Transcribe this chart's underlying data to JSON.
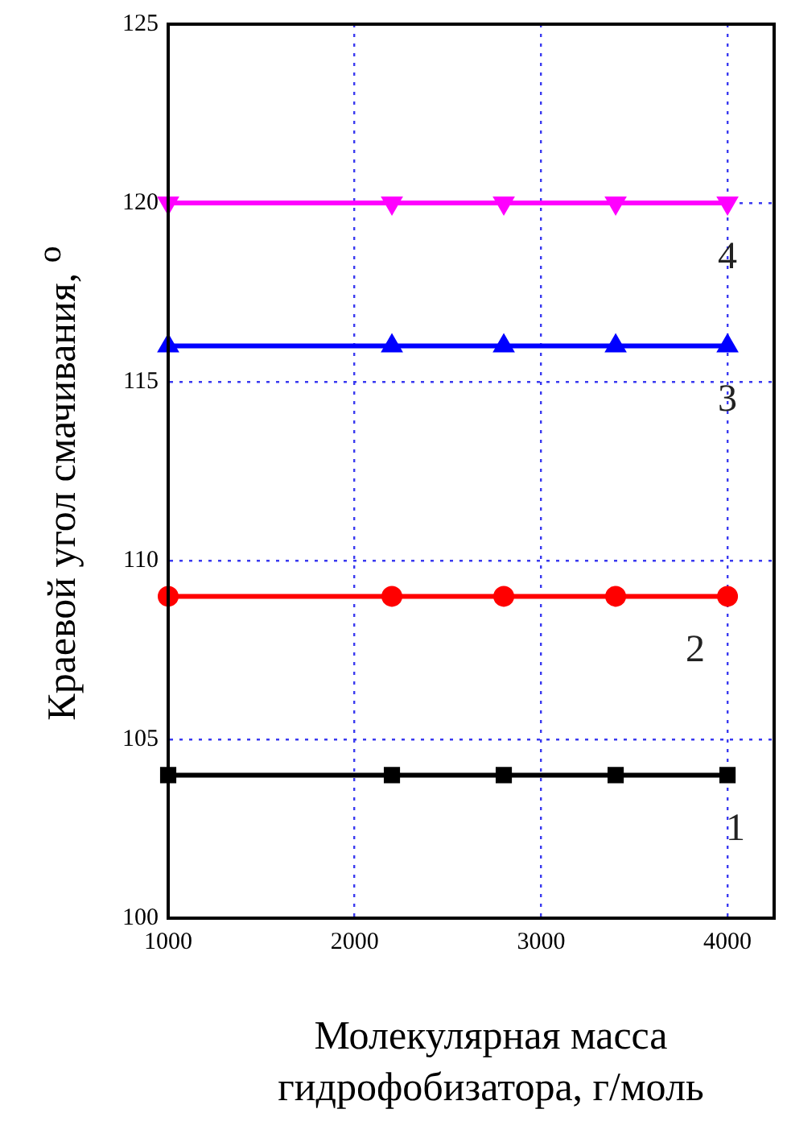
{
  "chart_data": {
    "type": "line",
    "xlabel": "Молекулярная масса гидрофобизатора, г/моль",
    "ylabel": "Краевой угол смачивания, $^{o}$",
    "x": [
      1000,
      2200,
      2800,
      3400,
      4000
    ],
    "series": [
      {
        "color": "#000000",
        "marker": "square",
        "values": [
          104,
          104,
          104,
          104,
          104
        ]
      },
      {
        "color": "#ff0000",
        "marker": "circle",
        "values": [
          109,
          109,
          109,
          109,
          109
        ]
      },
      {
        "color": "#0000ff",
        "marker": "triangle",
        "values": [
          116,
          116,
          116,
          116,
          116
        ]
      },
      {
        "color": "#ff00ff",
        "marker": "triangle-down",
        "values": [
          120,
          120,
          120,
          120,
          120
        ]
      }
    ],
    "xlim": [
      1000,
      4250
    ],
    "xticks": [
      1000,
      2000,
      3000,
      4000
    ],
    "ylim": [
      100,
      125
    ],
    "yticks": [
      100,
      105,
      110,
      115,
      120,
      125
    ],
    "grid": true,
    "legend": false,
    "annotations": [
      "1",
      "2",
      "3",
      "4"
    ]
  }
}
